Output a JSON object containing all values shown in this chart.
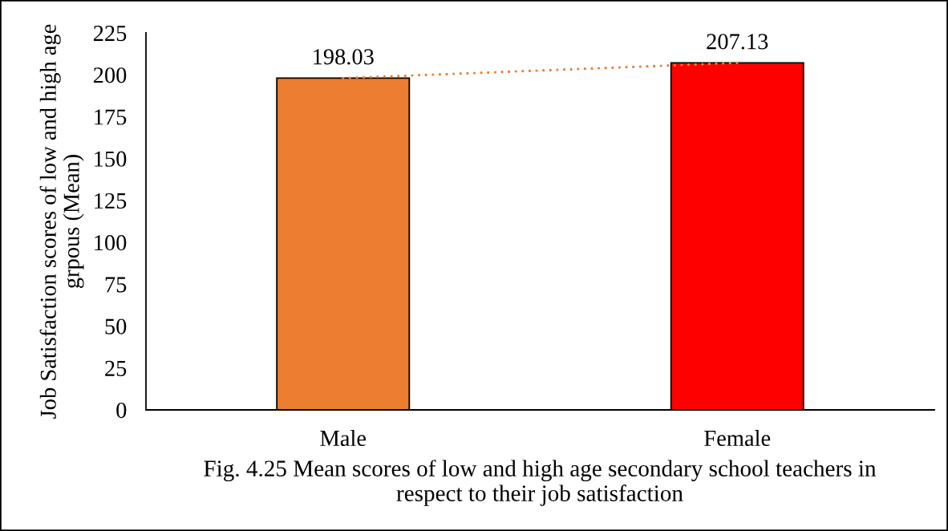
{
  "chart_data": {
    "type": "bar",
    "categories": [
      "Male",
      "Female"
    ],
    "series": [
      {
        "colors": [
          "#ed7d31",
          "#ff0000"
        ],
        "values": [
          198.03,
          207.13
        ],
        "value_labels": [
          "198.03",
          "207.13"
        ]
      },
      {
        "type": "line",
        "color": "#ed7d31",
        "line_style": "dotted",
        "values": [
          198.03,
          207.13
        ]
      }
    ],
    "ylabel": "Job Satisfaction scores of low and high age\ngrpous (Mean)",
    "annotations": [
      "Fig. 4.25 Mean scores of low and high age secondary school teachers in\nrespect to their job satisfaction"
    ],
    "ylim": [
      0,
      225
    ],
    "yticks": [
      0,
      25,
      50,
      75,
      100,
      125,
      150,
      175,
      200,
      225
    ],
    "grid": false
  }
}
